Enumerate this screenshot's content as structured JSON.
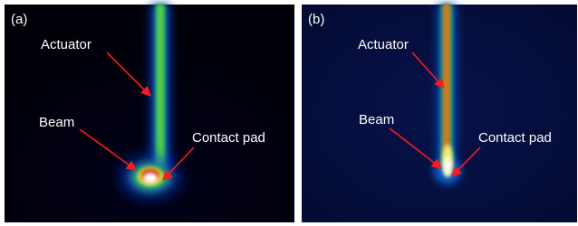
{
  "panels": [
    {
      "label": "(a)",
      "annotations": {
        "actuator": "Actuator",
        "beam": "Beam",
        "contact_pad": "Contact pad"
      }
    },
    {
      "label": "(b)",
      "annotations": {
        "actuator": "Actuator",
        "beam": "Beam",
        "contact_pad": "Contact pad"
      }
    }
  ]
}
